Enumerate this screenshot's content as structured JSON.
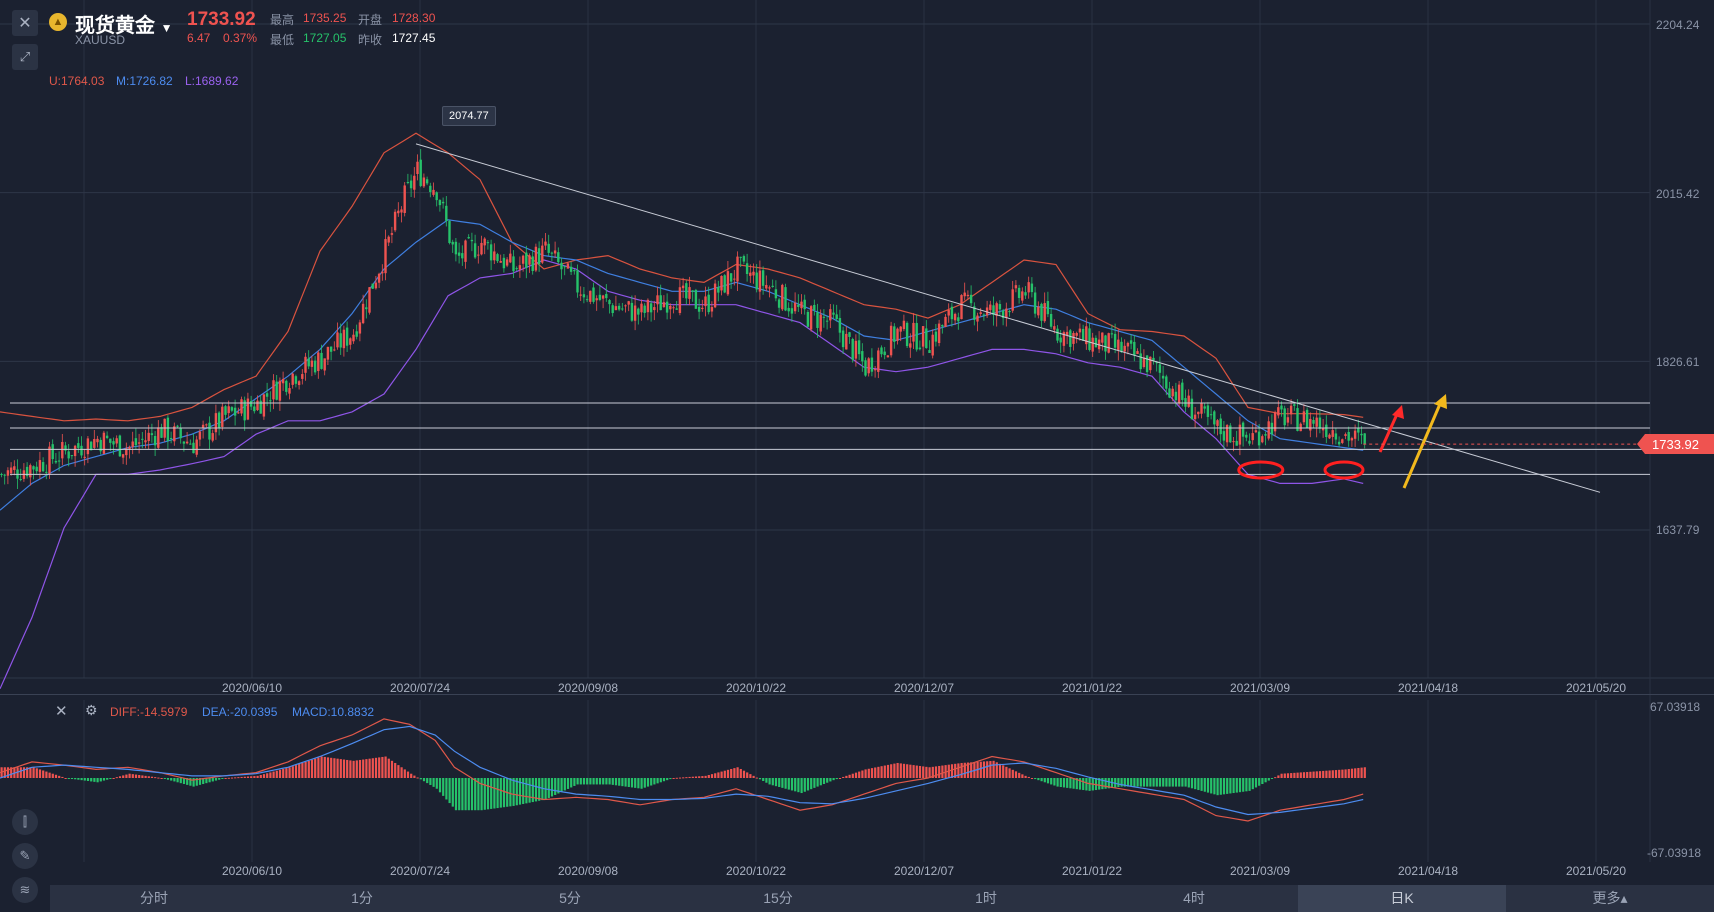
{
  "header": {
    "name": "现货黄金",
    "code": "XAUUSD",
    "price": "1733.92",
    "change": "6.47",
    "change_pct": "0.37%",
    "high_label": "最高",
    "high": "1735.25",
    "open_label": "开盘",
    "open": "1728.30",
    "low_label": "最低",
    "low": "1727.05",
    "prev_label": "昨收",
    "prev": "1727.45"
  },
  "indicators": {
    "boll_u": "U:1764.03",
    "boll_m": "M:1726.82",
    "boll_l": "L:1689.62",
    "diff": "DIFF:-14.5979",
    "dea": "DEA:-20.0395",
    "macd": "MACD:10.8832"
  },
  "colors": {
    "up": "#ef5350",
    "down": "#26c26a",
    "upper_band": "#d9533f",
    "mid_band": "#3f7fe0",
    "lower_band": "#8f55e8",
    "background": "#1b2130"
  },
  "current_price_tag": "1733.92",
  "peak_tag": "2074.77",
  "tabs": [
    "分时",
    "1分",
    "5分",
    "15分",
    "1时",
    "4时",
    "日K",
    "更多▴"
  ],
  "active_tab": "日K",
  "chart_data": [
    {
      "type": "candlestick",
      "y_ticks": [
        "2204.24",
        "2015.42",
        "1826.61",
        "1637.79"
      ],
      "ylim": [
        1450,
        2204.24
      ],
      "x_tick_labels": [
        "2020/06/10",
        "2020/07/24",
        "2020/09/08",
        "2020/10/22",
        "2020/12/07",
        "2021/01/22",
        "2021/03/09",
        "2021/04/18",
        "2021/05/20"
      ],
      "last_price": 1733.92,
      "peak_label": 2074.77,
      "close_path": [
        [
          0,
          1700
        ],
        [
          10,
          1710
        ],
        [
          20,
          1725
        ],
        [
          30,
          1740
        ],
        [
          40,
          1730
        ],
        [
          50,
          1750
        ],
        [
          60,
          1735
        ],
        [
          70,
          1765
        ],
        [
          80,
          1780
        ],
        [
          90,
          1810
        ],
        [
          100,
          1830
        ],
        [
          110,
          1860
        ],
        [
          120,
          1950
        ],
        [
          126,
          2010
        ],
        [
          130,
          2040
        ],
        [
          136,
          2020
        ],
        [
          142,
          1940
        ],
        [
          150,
          1960
        ],
        [
          160,
          1930
        ],
        [
          170,
          1950
        ],
        [
          180,
          1910
        ],
        [
          190,
          1890
        ],
        [
          200,
          1880
        ],
        [
          210,
          1900
        ],
        [
          220,
          1890
        ],
        [
          230,
          1930
        ],
        [
          240,
          1910
        ],
        [
          250,
          1880
        ],
        [
          260,
          1870
        ],
        [
          270,
          1820
        ],
        [
          280,
          1860
        ],
        [
          290,
          1850
        ],
        [
          300,
          1890
        ],
        [
          310,
          1880
        ],
        [
          320,
          1905
        ],
        [
          330,
          1860
        ],
        [
          340,
          1850
        ],
        [
          350,
          1840
        ],
        [
          360,
          1820
        ],
        [
          370,
          1780
        ],
        [
          380,
          1750
        ],
        [
          390,
          1740
        ],
        [
          400,
          1765
        ],
        [
          410,
          1760
        ],
        [
          420,
          1745
        ],
        [
          426,
          1733.92
        ]
      ],
      "bollinger_upper": [
        [
          0,
          1770
        ],
        [
          10,
          1765
        ],
        [
          20,
          1760
        ],
        [
          30,
          1762
        ],
        [
          40,
          1760
        ],
        [
          50,
          1765
        ],
        [
          60,
          1775
        ],
        [
          70,
          1795
        ],
        [
          80,
          1810
        ],
        [
          90,
          1860
        ],
        [
          100,
          1950
        ],
        [
          110,
          2000
        ],
        [
          120,
          2060
        ],
        [
          130,
          2082
        ],
        [
          140,
          2060
        ],
        [
          150,
          2030
        ],
        [
          160,
          1960
        ],
        [
          170,
          1930
        ],
        [
          180,
          1940
        ],
        [
          190,
          1945
        ],
        [
          200,
          1930
        ],
        [
          210,
          1920
        ],
        [
          220,
          1915
        ],
        [
          230,
          1935
        ],
        [
          240,
          1930
        ],
        [
          250,
          1920
        ],
        [
          260,
          1905
        ],
        [
          270,
          1890
        ],
        [
          280,
          1885
        ],
        [
          290,
          1875
        ],
        [
          300,
          1890
        ],
        [
          310,
          1915
        ],
        [
          320,
          1940
        ],
        [
          330,
          1935
        ],
        [
          340,
          1880
        ],
        [
          350,
          1862
        ],
        [
          360,
          1860
        ],
        [
          370,
          1855
        ],
        [
          380,
          1830
        ],
        [
          390,
          1775
        ],
        [
          400,
          1768
        ],
        [
          410,
          1768
        ],
        [
          420,
          1767
        ],
        [
          426,
          1764
        ]
      ],
      "bollinger_mid": [
        [
          0,
          1660
        ],
        [
          10,
          1690
        ],
        [
          20,
          1710
        ],
        [
          30,
          1720
        ],
        [
          40,
          1730
        ],
        [
          50,
          1735
        ],
        [
          60,
          1745
        ],
        [
          70,
          1760
        ],
        [
          80,
          1785
        ],
        [
          90,
          1810
        ],
        [
          100,
          1840
        ],
        [
          110,
          1880
        ],
        [
          120,
          1930
        ],
        [
          130,
          1960
        ],
        [
          140,
          1985
        ],
        [
          150,
          1980
        ],
        [
          160,
          1960
        ],
        [
          170,
          1945
        ],
        [
          180,
          1940
        ],
        [
          190,
          1925
        ],
        [
          200,
          1915
        ],
        [
          210,
          1905
        ],
        [
          220,
          1905
        ],
        [
          230,
          1915
        ],
        [
          240,
          1905
        ],
        [
          250,
          1890
        ],
        [
          260,
          1875
        ],
        [
          270,
          1855
        ],
        [
          280,
          1850
        ],
        [
          290,
          1860
        ],
        [
          300,
          1870
        ],
        [
          310,
          1880
        ],
        [
          320,
          1890
        ],
        [
          330,
          1885
        ],
        [
          340,
          1870
        ],
        [
          350,
          1860
        ],
        [
          360,
          1850
        ],
        [
          370,
          1820
        ],
        [
          380,
          1790
        ],
        [
          390,
          1760
        ],
        [
          400,
          1740
        ],
        [
          410,
          1735
        ],
        [
          420,
          1730
        ],
        [
          426,
          1727
        ]
      ],
      "bollinger_lower": [
        [
          0,
          1460
        ],
        [
          10,
          1540
        ],
        [
          20,
          1640
        ],
        [
          30,
          1700
        ],
        [
          40,
          1700
        ],
        [
          50,
          1705
        ],
        [
          60,
          1712
        ],
        [
          70,
          1720
        ],
        [
          80,
          1745
        ],
        [
          90,
          1760
        ],
        [
          100,
          1760
        ],
        [
          110,
          1770
        ],
        [
          120,
          1790
        ],
        [
          130,
          1840
        ],
        [
          140,
          1900
        ],
        [
          150,
          1920
        ],
        [
          160,
          1925
        ],
        [
          170,
          1940
        ],
        [
          180,
          1930
        ],
        [
          190,
          1905
        ],
        [
          200,
          1895
        ],
        [
          210,
          1890
        ],
        [
          220,
          1890
        ],
        [
          230,
          1890
        ],
        [
          240,
          1880
        ],
        [
          250,
          1870
        ],
        [
          260,
          1845
        ],
        [
          270,
          1820
        ],
        [
          280,
          1815
        ],
        [
          290,
          1820
        ],
        [
          300,
          1830
        ],
        [
          310,
          1840
        ],
        [
          320,
          1840
        ],
        [
          330,
          1835
        ],
        [
          340,
          1825
        ],
        [
          350,
          1820
        ],
        [
          360,
          1810
        ],
        [
          370,
          1770
        ],
        [
          380,
          1740
        ],
        [
          390,
          1700
        ],
        [
          400,
          1690
        ],
        [
          410,
          1690
        ],
        [
          420,
          1695
        ],
        [
          426,
          1690
        ]
      ],
      "horizontal_levels": [
        1780,
        1752,
        1728,
        1700
      ],
      "trendline": [
        [
          130,
          2070
        ],
        [
          500,
          1680
        ]
      ],
      "annotations": [
        "red-circle-low-1",
        "red-circle-low-2",
        "red-up-arrow",
        "yellow-up-arrow"
      ]
    },
    {
      "type": "macd",
      "y_ticks": [
        "67.03918",
        "-67.03918"
      ],
      "ylim": [
        -67.03918,
        67.03918
      ],
      "x_tick_labels": [
        "2020/06/10",
        "2020/07/24",
        "2020/09/08",
        "2020/10/22",
        "2020/12/07",
        "2021/01/22",
        "2021/03/09",
        "2021/04/18",
        "2021/05/20"
      ],
      "diff_path": [
        [
          0,
          5
        ],
        [
          10,
          15
        ],
        [
          20,
          12
        ],
        [
          30,
          8
        ],
        [
          40,
          10
        ],
        [
          50,
          5
        ],
        [
          60,
          -2
        ],
        [
          70,
          2
        ],
        [
          80,
          5
        ],
        [
          90,
          15
        ],
        [
          100,
          30
        ],
        [
          110,
          40
        ],
        [
          120,
          55
        ],
        [
          128,
          50
        ],
        [
          136,
          35
        ],
        [
          142,
          10
        ],
        [
          150,
          -5
        ],
        [
          160,
          -15
        ],
        [
          170,
          -20
        ],
        [
          180,
          -18
        ],
        [
          190,
          -20
        ],
        [
          200,
          -25
        ],
        [
          210,
          -20
        ],
        [
          220,
          -18
        ],
        [
          230,
          -10
        ],
        [
          240,
          -20
        ],
        [
          250,
          -30
        ],
        [
          260,
          -25
        ],
        [
          270,
          -15
        ],
        [
          280,
          -5
        ],
        [
          290,
          0
        ],
        [
          300,
          10
        ],
        [
          310,
          20
        ],
        [
          320,
          15
        ],
        [
          330,
          5
        ],
        [
          340,
          -5
        ],
        [
          350,
          -10
        ],
        [
          360,
          -15
        ],
        [
          370,
          -20
        ],
        [
          380,
          -35
        ],
        [
          390,
          -40
        ],
        [
          400,
          -30
        ],
        [
          410,
          -25
        ],
        [
          420,
          -20
        ],
        [
          426,
          -15
        ]
      ],
      "dea_path": [
        [
          0,
          0
        ],
        [
          10,
          10
        ],
        [
          20,
          12
        ],
        [
          30,
          10
        ],
        [
          40,
          8
        ],
        [
          50,
          5
        ],
        [
          60,
          2
        ],
        [
          70,
          2
        ],
        [
          80,
          4
        ],
        [
          90,
          10
        ],
        [
          100,
          20
        ],
        [
          110,
          32
        ],
        [
          120,
          45
        ],
        [
          128,
          48
        ],
        [
          136,
          40
        ],
        [
          142,
          25
        ],
        [
          150,
          10
        ],
        [
          160,
          -2
        ],
        [
          170,
          -10
        ],
        [
          180,
          -15
        ],
        [
          190,
          -17
        ],
        [
          200,
          -20
        ],
        [
          210,
          -20
        ],
        [
          220,
          -19
        ],
        [
          230,
          -15
        ],
        [
          240,
          -17
        ],
        [
          250,
          -23
        ],
        [
          260,
          -24
        ],
        [
          270,
          -19
        ],
        [
          280,
          -12
        ],
        [
          290,
          -5
        ],
        [
          300,
          3
        ],
        [
          310,
          12
        ],
        [
          320,
          14
        ],
        [
          330,
          9
        ],
        [
          340,
          1
        ],
        [
          350,
          -6
        ],
        [
          360,
          -11
        ],
        [
          370,
          -16
        ],
        [
          380,
          -27
        ],
        [
          390,
          -34
        ],
        [
          400,
          -32
        ],
        [
          410,
          -28
        ],
        [
          420,
          -24
        ],
        [
          426,
          -20
        ]
      ]
    }
  ]
}
